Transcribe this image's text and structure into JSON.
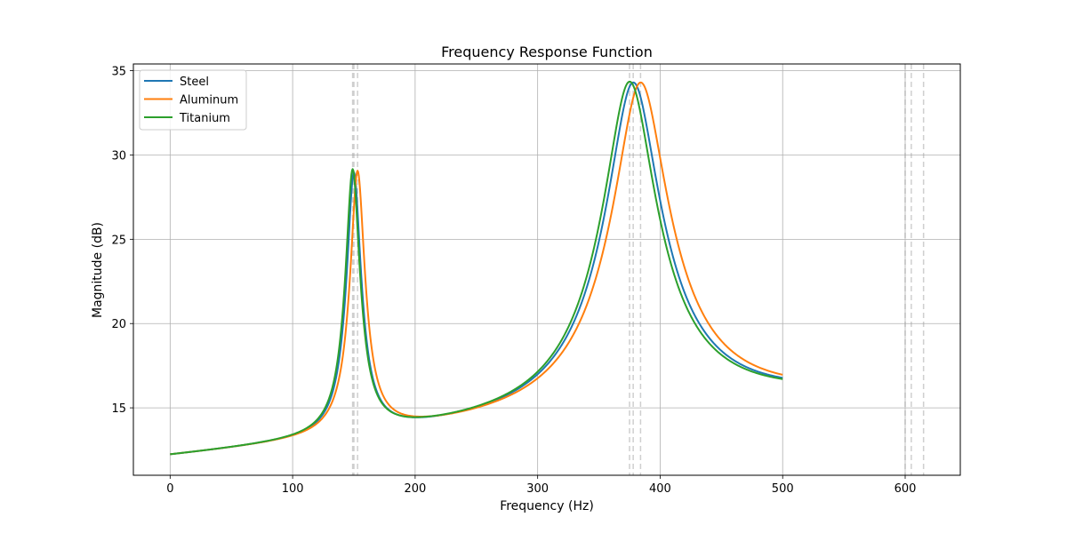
{
  "chart_data": {
    "type": "line",
    "title": "Frequency Response Function",
    "xlabel": "Frequency (Hz)",
    "ylabel": "Magnitude (dB)",
    "xlim": [
      -30,
      645
    ],
    "ylim": [
      11,
      35.4
    ],
    "xticks": [
      0,
      100,
      200,
      300,
      400,
      500,
      600
    ],
    "yticks": [
      15,
      20,
      25,
      30,
      35
    ],
    "grid": true,
    "legend_position": "top-left",
    "freq_max": 500,
    "baseline": {
      "start": 12.05,
      "end": 15.45
    },
    "series": [
      {
        "name": "Steel",
        "color": "#1f77b4",
        "peaks": [
          {
            "freq": 150,
            "height": 28.9,
            "width": 4.8
          },
          {
            "freq": 378,
            "height": 34.3,
            "width": 17
          }
        ]
      },
      {
        "name": "Aluminum",
        "color": "#ff7f0e",
        "peaks": [
          {
            "freq": 153,
            "height": 29.0,
            "width": 4.9
          },
          {
            "freq": 384,
            "height": 34.3,
            "width": 17.4
          }
        ]
      },
      {
        "name": "Titanium",
        "color": "#2ca02c",
        "peaks": [
          {
            "freq": 149,
            "height": 29.1,
            "width": 4.8
          },
          {
            "freq": 375,
            "height": 34.35,
            "width": 16.8
          }
        ]
      }
    ],
    "reference_lines": {
      "color": "#a0a0a0",
      "x_values": [
        149,
        150,
        153,
        375,
        378,
        384,
        600,
        605,
        615
      ]
    }
  }
}
